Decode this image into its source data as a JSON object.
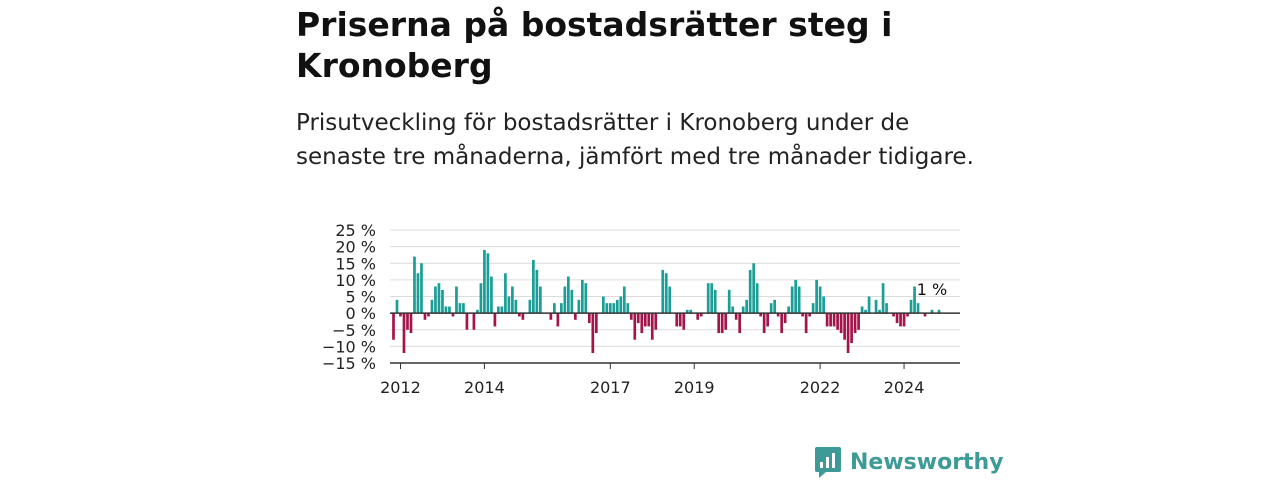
{
  "chart_data": {
    "type": "bar",
    "title": "Priserna på bostadsrätter steg i Kronoberg",
    "subtitle": "Prisutveckling för bostadsrätter i Kronoberg under de senaste tre månaderna, jämfört med tre månader tidigare.",
    "x_start": "2011-10",
    "x_end": "2025-05",
    "xticks": [
      "2012",
      "2014",
      "2017",
      "2019",
      "2022",
      "2024"
    ],
    "xtick_dates": [
      "2012-01",
      "2014-01",
      "2017-01",
      "2019-01",
      "2022-01",
      "2024-01"
    ],
    "ylim": [
      -15,
      25
    ],
    "yticks": [
      -15,
      -10,
      -5,
      0,
      5,
      10,
      15,
      20,
      25
    ],
    "ytick_labels": [
      "−15 %",
      "−10 %",
      "−5 %",
      "0 %",
      "5 %",
      "10 %",
      "15 %",
      "20 %",
      "25 %"
    ],
    "grid": true,
    "legend": "none",
    "positive_color": "#1a9e96",
    "negative_color": "#a3154a",
    "annotation": {
      "text": "1 %",
      "date": "2024-09",
      "value": 1
    },
    "series": [
      {
        "start": "2011-10",
        "unit": "%",
        "values": [
          0,
          -8,
          4,
          -1,
          -12,
          -5,
          -6,
          17,
          12,
          15,
          -2,
          -1,
          4,
          8,
          9,
          7,
          2,
          2,
          -1,
          8,
          3,
          3,
          -5,
          0,
          -5,
          1,
          9,
          19,
          18,
          11,
          -4,
          2,
          2,
          12,
          5,
          8,
          4,
          -1,
          -2,
          0,
          4,
          16,
          13,
          8,
          0,
          0,
          -2,
          3,
          -4,
          3,
          8,
          11,
          7,
          -2,
          4,
          10,
          9,
          -3,
          -12,
          -6,
          0,
          5,
          3,
          3,
          3,
          4,
          5,
          8,
          3,
          -2,
          -8,
          -3,
          -6,
          -4,
          -4,
          -8,
          -5,
          0,
          13,
          12,
          8,
          0,
          -4,
          -4,
          -5,
          1,
          1,
          0,
          -2,
          -1,
          0,
          9,
          9,
          7,
          -6,
          -6,
          -5,
          7,
          2,
          -2,
          -6,
          2,
          4,
          13,
          15,
          9,
          -1,
          -6,
          -4,
          3,
          4,
          -1,
          -6,
          -3,
          2,
          8,
          10,
          8,
          -1,
          -6,
          -1,
          3,
          10,
          8,
          5,
          -4,
          -4,
          -4,
          -5,
          -6,
          -8,
          -12,
          -9,
          -6,
          -5,
          2,
          1,
          5,
          0,
          4,
          1,
          9,
          3,
          0,
          -1,
          -3,
          -4,
          -4,
          -1,
          4,
          8,
          3,
          0,
          -1,
          0,
          1,
          0,
          1,
          0
        ]
      }
    ]
  },
  "brand": {
    "name": "Newsworthy"
  }
}
